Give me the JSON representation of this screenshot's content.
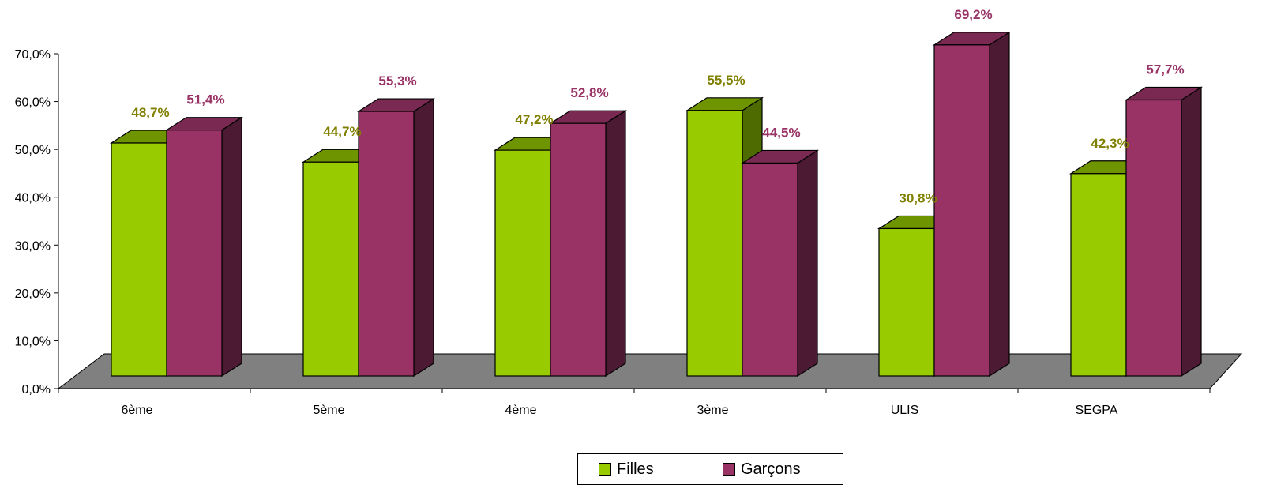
{
  "chart_data": {
    "type": "bar",
    "title": "",
    "xlabel": "",
    "ylabel": "",
    "categories": [
      "6ème",
      "5ème",
      "4ème",
      "3ème",
      "ULIS",
      "SEGPA"
    ],
    "series": [
      {
        "name": "Filles",
        "values": [
          48.7,
          44.7,
          47.2,
          55.5,
          30.8,
          42.3
        ],
        "labels": [
          "48,7%",
          "44,7%",
          "47,2%",
          "55,5%",
          "30,8%",
          "42,3%"
        ],
        "color": "#99CC00",
        "top_color": "#6E9400",
        "side_color": "#4D6B00",
        "label_color": "#808000"
      },
      {
        "name": "Garçons",
        "values": [
          51.4,
          55.3,
          52.8,
          44.5,
          69.2,
          57.7
        ],
        "labels": [
          "51,4%",
          "55,3%",
          "52,8%",
          "44,5%",
          "69,2%",
          "57,7%"
        ],
        "color": "#993366",
        "top_color": "#7A2A52",
        "side_color": "#4D1A33",
        "label_color": "#993366"
      }
    ],
    "yticks": [
      "0,0%",
      "10,0%",
      "20,0%",
      "30,0%",
      "40,0%",
      "50,0%",
      "60,0%",
      "70,0%"
    ],
    "ylim": [
      0,
      70
    ],
    "grid": false,
    "legend_position": "bottom-center",
    "floor_color": "#808080"
  }
}
